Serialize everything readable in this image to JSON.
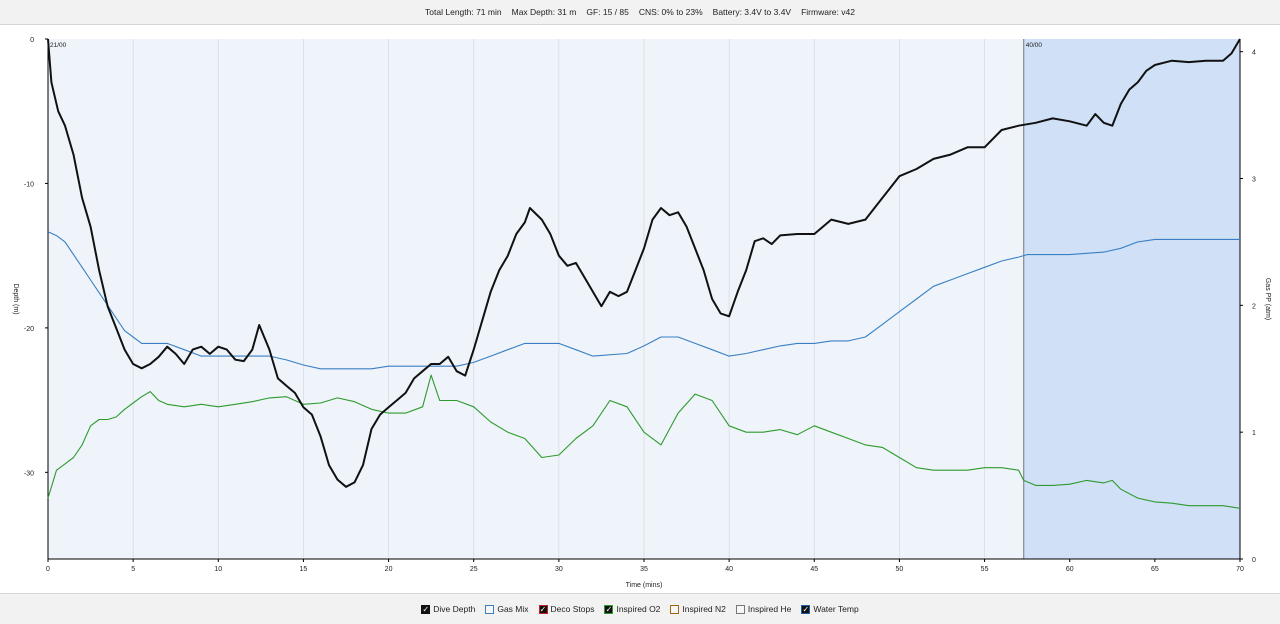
{
  "header": {
    "total_length": "Total Length: 71 min",
    "max_depth": "Max Depth: 31 m",
    "gf": "GF: 15 / 85",
    "cns": "CNS: 0% to 23%",
    "battery": "Battery: 3.4V to 3.4V",
    "firmware": "Firmware: v42"
  },
  "legend": [
    {
      "label": "Dive Depth",
      "color": "#111111",
      "checked": true
    },
    {
      "label": "Gas Mix",
      "color": "#3a7fc4",
      "checked": false
    },
    {
      "label": "Deco Stops",
      "color": "#c62020",
      "checked": true
    },
    {
      "label": "Inspired O2",
      "color": "#2e9a2e",
      "checked": true
    },
    {
      "label": "Inspired N2",
      "color": "#9a6a10",
      "checked": false
    },
    {
      "label": "Inspired He",
      "color": "#777777",
      "checked": false
    },
    {
      "label": "Water Temp",
      "color": "#1f5fa8",
      "checked": true
    }
  ],
  "chart_data": {
    "type": "line",
    "xlabel": "Time (mins)",
    "ylabel_left": "Depth (m)",
    "ylabel_right": "Gas PP (atm)",
    "xlim": [
      0,
      70
    ],
    "x_ticks": [
      "0",
      "5",
      "10",
      "15",
      "20",
      "25",
      "30",
      "35",
      "40",
      "45",
      "50",
      "55",
      "60",
      "65",
      "70"
    ],
    "ylim_left": [
      -36,
      0
    ],
    "y_ticks_left": [
      "0",
      "-10",
      "-20",
      "-30"
    ],
    "ylim_right": [
      0,
      4.1
    ],
    "y_ticks_right": [
      "0",
      "1",
      "2",
      "3",
      "4"
    ],
    "grid": "vertical",
    "segments": [
      {
        "label": "21/00",
        "start": 0,
        "end": 57.3,
        "color": "#eef4fa"
      },
      {
        "label": "40/00",
        "start": 57.3,
        "end": 70,
        "color": "#cfe0f7"
      }
    ],
    "series": [
      {
        "name": "Dive Depth",
        "color": "#111111",
        "axis": "left",
        "points": [
          [
            0,
            0
          ],
          [
            0.2,
            -3
          ],
          [
            0.6,
            -5
          ],
          [
            1,
            -6
          ],
          [
            1.5,
            -8
          ],
          [
            2,
            -11
          ],
          [
            2.5,
            -13
          ],
          [
            3,
            -16
          ],
          [
            3.5,
            -18.5
          ],
          [
            4,
            -20
          ],
          [
            4.5,
            -21.5
          ],
          [
            5,
            -22.5
          ],
          [
            5.5,
            -22.8
          ],
          [
            6,
            -22.5
          ],
          [
            6.5,
            -22
          ],
          [
            7,
            -21.3
          ],
          [
            7.5,
            -21.8
          ],
          [
            8,
            -22.5
          ],
          [
            8.5,
            -21.5
          ],
          [
            9,
            -21.3
          ],
          [
            9.5,
            -21.8
          ],
          [
            10,
            -21.3
          ],
          [
            10.5,
            -21.5
          ],
          [
            11,
            -22.2
          ],
          [
            11.5,
            -22.3
          ],
          [
            12,
            -21.5
          ],
          [
            12.4,
            -19.8
          ],
          [
            13,
            -21.5
          ],
          [
            13.5,
            -23.5
          ],
          [
            14,
            -24
          ],
          [
            14.5,
            -24.5
          ],
          [
            15,
            -25.5
          ],
          [
            15.5,
            -26
          ],
          [
            16,
            -27.5
          ],
          [
            16.5,
            -29.5
          ],
          [
            17,
            -30.5
          ],
          [
            17.5,
            -31
          ],
          [
            18,
            -30.7
          ],
          [
            18.5,
            -29.5
          ],
          [
            19,
            -27
          ],
          [
            19.5,
            -26
          ],
          [
            20,
            -25.5
          ],
          [
            20.5,
            -25
          ],
          [
            21,
            -24.5
          ],
          [
            21.5,
            -23.5
          ],
          [
            22,
            -23
          ],
          [
            22.5,
            -22.5
          ],
          [
            23,
            -22.5
          ],
          [
            23.5,
            -22
          ],
          [
            24,
            -23
          ],
          [
            24.5,
            -23.3
          ],
          [
            25,
            -21.5
          ],
          [
            25.5,
            -19.5
          ],
          [
            26,
            -17.5
          ],
          [
            26.5,
            -16
          ],
          [
            27,
            -15
          ],
          [
            27.5,
            -13.5
          ],
          [
            28,
            -12.7
          ],
          [
            28.3,
            -11.7
          ],
          [
            29,
            -12.5
          ],
          [
            29.5,
            -13.5
          ],
          [
            30,
            -15
          ],
          [
            30.5,
            -15.7
          ],
          [
            31,
            -15.5
          ],
          [
            31.5,
            -16.5
          ],
          [
            32,
            -17.5
          ],
          [
            32.5,
            -18.5
          ],
          [
            33,
            -17.5
          ],
          [
            33.5,
            -17.8
          ],
          [
            34,
            -17.5
          ],
          [
            34.5,
            -16
          ],
          [
            35,
            -14.5
          ],
          [
            35.5,
            -12.5
          ],
          [
            36,
            -11.7
          ],
          [
            36.5,
            -12.2
          ],
          [
            37,
            -12
          ],
          [
            37.5,
            -13
          ],
          [
            38,
            -14.5
          ],
          [
            38.5,
            -16
          ],
          [
            39,
            -18
          ],
          [
            39.5,
            -19
          ],
          [
            40,
            -19.2
          ],
          [
            40.5,
            -17.5
          ],
          [
            41,
            -16
          ],
          [
            41.5,
            -14
          ],
          [
            42,
            -13.8
          ],
          [
            42.5,
            -14.2
          ],
          [
            43,
            -13.6
          ],
          [
            44,
            -13.5
          ],
          [
            45,
            -13.5
          ],
          [
            46,
            -12.5
          ],
          [
            47,
            -12.8
          ],
          [
            48,
            -12.5
          ],
          [
            49,
            -11
          ],
          [
            50,
            -9.5
          ],
          [
            51,
            -9
          ],
          [
            52,
            -8.3
          ],
          [
            53,
            -8
          ],
          [
            54,
            -7.5
          ],
          [
            55,
            -7.5
          ],
          [
            56,
            -6.3
          ],
          [
            57,
            -6
          ],
          [
            58,
            -5.8
          ],
          [
            59,
            -5.5
          ],
          [
            60,
            -5.7
          ],
          [
            61,
            -6
          ],
          [
            61.5,
            -5.2
          ],
          [
            62,
            -5.8
          ],
          [
            62.5,
            -6
          ],
          [
            63,
            -4.5
          ],
          [
            63.5,
            -3.5
          ],
          [
            64,
            -3
          ],
          [
            64.5,
            -2.2
          ],
          [
            65,
            -1.8
          ],
          [
            66,
            -1.5
          ],
          [
            67,
            -1.6
          ],
          [
            68,
            -1.5
          ],
          [
            69,
            -1.5
          ],
          [
            69.5,
            -1
          ],
          [
            70,
            0
          ]
        ]
      },
      {
        "name": "Gas PP",
        "color": "#3a7fc4",
        "axis": "right",
        "points": [
          [
            0,
            2.58
          ],
          [
            0.5,
            2.55
          ],
          [
            1,
            2.5
          ],
          [
            1.5,
            2.4
          ],
          [
            2,
            2.3
          ],
          [
            2.5,
            2.2
          ],
          [
            3,
            2.1
          ],
          [
            3.5,
            2
          ],
          [
            4,
            1.9
          ],
          [
            4.5,
            1.8
          ],
          [
            5,
            1.75
          ],
          [
            5.5,
            1.7
          ],
          [
            6,
            1.7
          ],
          [
            7,
            1.7
          ],
          [
            8,
            1.65
          ],
          [
            9,
            1.6
          ],
          [
            10,
            1.6
          ],
          [
            12,
            1.6
          ],
          [
            13,
            1.6
          ],
          [
            14,
            1.57
          ],
          [
            15,
            1.53
          ],
          [
            16,
            1.5
          ],
          [
            17,
            1.5
          ],
          [
            18,
            1.5
          ],
          [
            19,
            1.5
          ],
          [
            20,
            1.52
          ],
          [
            22,
            1.52
          ],
          [
            24,
            1.52
          ],
          [
            25,
            1.55
          ],
          [
            26,
            1.6
          ],
          [
            27,
            1.65
          ],
          [
            28,
            1.7
          ],
          [
            30,
            1.7
          ],
          [
            31,
            1.65
          ],
          [
            32,
            1.6
          ],
          [
            34,
            1.62
          ],
          [
            35,
            1.68
          ],
          [
            36,
            1.75
          ],
          [
            37,
            1.75
          ],
          [
            38,
            1.7
          ],
          [
            39,
            1.65
          ],
          [
            40,
            1.6
          ],
          [
            41,
            1.62
          ],
          [
            42,
            1.65
          ],
          [
            43,
            1.68
          ],
          [
            44,
            1.7
          ],
          [
            45,
            1.7
          ],
          [
            46,
            1.72
          ],
          [
            47,
            1.72
          ],
          [
            48,
            1.75
          ],
          [
            49,
            1.85
          ],
          [
            50,
            1.95
          ],
          [
            51,
            2.05
          ],
          [
            52,
            2.15
          ],
          [
            53,
            2.2
          ],
          [
            54,
            2.25
          ],
          [
            55,
            2.3
          ],
          [
            56,
            2.35
          ],
          [
            57,
            2.38
          ],
          [
            57.5,
            2.4
          ],
          [
            60,
            2.4
          ],
          [
            62,
            2.42
          ],
          [
            63,
            2.45
          ],
          [
            64,
            2.5
          ],
          [
            65,
            2.52
          ],
          [
            67,
            2.52
          ],
          [
            70,
            2.52
          ]
        ]
      },
      {
        "name": "Inspired O2",
        "color": "#2e9a2e",
        "axis": "right",
        "points": [
          [
            0,
            0.48
          ],
          [
            0.5,
            0.7
          ],
          [
            1,
            0.75
          ],
          [
            1.5,
            0.8
          ],
          [
            2,
            0.9
          ],
          [
            2.5,
            1.05
          ],
          [
            3,
            1.1
          ],
          [
            3.5,
            1.1
          ],
          [
            4,
            1.12
          ],
          [
            4.5,
            1.18
          ],
          [
            5,
            1.23
          ],
          [
            5.5,
            1.28
          ],
          [
            6,
            1.32
          ],
          [
            6.5,
            1.25
          ],
          [
            7,
            1.22
          ],
          [
            8,
            1.2
          ],
          [
            9,
            1.22
          ],
          [
            10,
            1.2
          ],
          [
            11,
            1.22
          ],
          [
            12,
            1.24
          ],
          [
            13,
            1.27
          ],
          [
            14,
            1.28
          ],
          [
            15,
            1.22
          ],
          [
            16,
            1.23
          ],
          [
            17,
            1.27
          ],
          [
            18,
            1.24
          ],
          [
            19,
            1.18
          ],
          [
            20,
            1.15
          ],
          [
            21,
            1.15
          ],
          [
            22,
            1.2
          ],
          [
            22.5,
            1.45
          ],
          [
            23,
            1.25
          ],
          [
            24,
            1.25
          ],
          [
            25,
            1.2
          ],
          [
            26,
            1.08
          ],
          [
            27,
            1.0
          ],
          [
            28,
            0.95
          ],
          [
            29,
            0.8
          ],
          [
            30,
            0.82
          ],
          [
            31,
            0.95
          ],
          [
            32,
            1.05
          ],
          [
            33,
            1.25
          ],
          [
            34,
            1.2
          ],
          [
            35,
            1.0
          ],
          [
            36,
            0.9
          ],
          [
            37,
            1.15
          ],
          [
            38,
            1.3
          ],
          [
            39,
            1.25
          ],
          [
            40,
            1.05
          ],
          [
            41,
            1.0
          ],
          [
            42,
            1.0
          ],
          [
            43,
            1.02
          ],
          [
            44,
            0.98
          ],
          [
            45,
            1.05
          ],
          [
            46,
            1.0
          ],
          [
            47,
            0.95
          ],
          [
            48,
            0.9
          ],
          [
            49,
            0.88
          ],
          [
            50,
            0.8
          ],
          [
            51,
            0.72
          ],
          [
            52,
            0.7
          ],
          [
            53,
            0.7
          ],
          [
            54,
            0.7
          ],
          [
            55,
            0.72
          ],
          [
            56,
            0.72
          ],
          [
            57,
            0.7
          ],
          [
            57.3,
            0.62
          ],
          [
            58,
            0.58
          ],
          [
            59,
            0.58
          ],
          [
            60,
            0.59
          ],
          [
            61,
            0.62
          ],
          [
            62,
            0.6
          ],
          [
            62.5,
            0.62
          ],
          [
            63,
            0.55
          ],
          [
            64,
            0.48
          ],
          [
            65,
            0.45
          ],
          [
            66,
            0.44
          ],
          [
            67,
            0.42
          ],
          [
            68,
            0.42
          ],
          [
            69,
            0.42
          ],
          [
            70,
            0.4
          ]
        ]
      }
    ]
  }
}
